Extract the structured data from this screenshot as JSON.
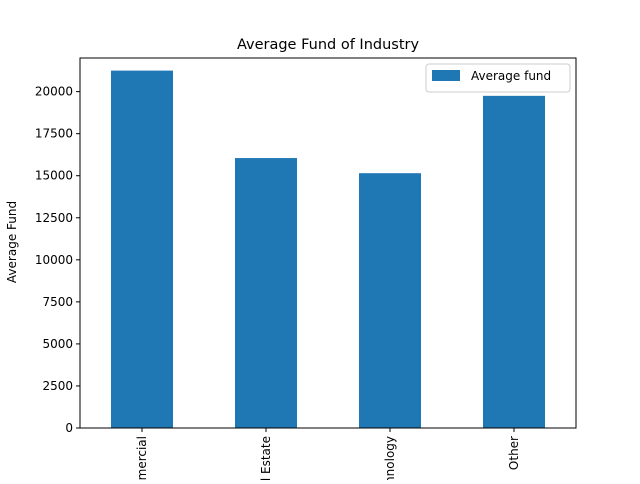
{
  "chart_data": {
    "type": "bar",
    "title": "Average Fund of Industry",
    "xlabel": "",
    "ylabel": "Average Fund",
    "categories": [
      "Commercial",
      "Real Estate",
      "Technology",
      "Other"
    ],
    "series": [
      {
        "name": "Average fund",
        "values": [
          21250,
          16050,
          15150,
          19750
        ]
      }
    ],
    "ylim": [
      0,
      22000
    ],
    "yticks": [
      0,
      2500,
      5000,
      7500,
      10000,
      12500,
      15000,
      17500,
      20000
    ],
    "grid": false,
    "legend": "top-right",
    "colors": {
      "bar": "#1f77b4",
      "axis": "#000000",
      "legend_border": "#cccccc"
    }
  }
}
